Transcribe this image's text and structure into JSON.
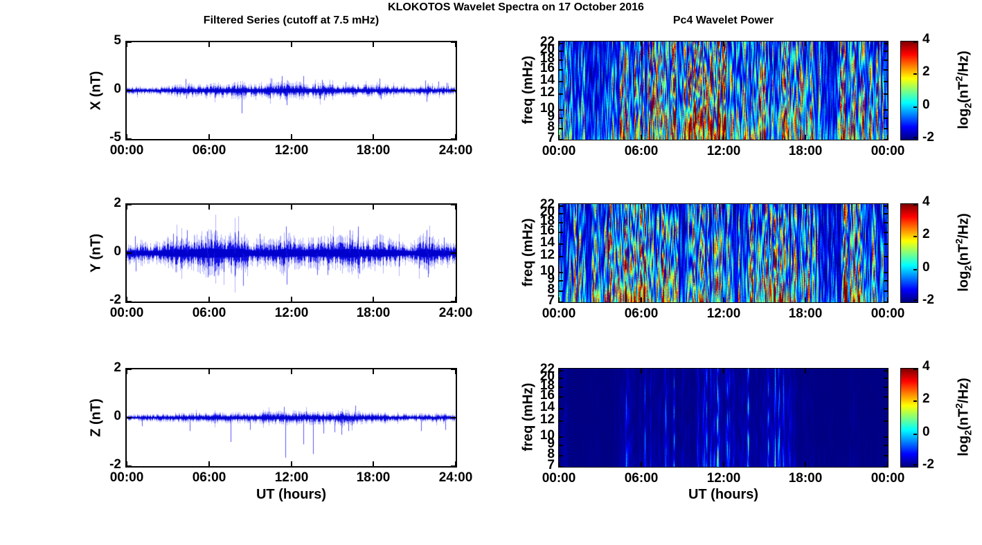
{
  "figure": {
    "title": "KLOKOTOS Wavelet Spectra on 17 October 2016",
    "background": "#ffffff",
    "series_color": "#0000ee",
    "heat_background": "#000080",
    "colormap": "jet"
  },
  "columns": {
    "left": {
      "title": "Filtered Series (cutoff at 7.5 mHz)",
      "xlabel": "UT (hours)"
    },
    "right": {
      "title": "Pc4 Wavelet Power",
      "xlabel": "UT (hours)"
    }
  },
  "colorbar": {
    "label_parts": {
      "pre": "log",
      "sub": "2",
      "mid": "(nT",
      "sup": "2",
      "post": "/Hz)"
    },
    "ticks": [
      -2,
      0,
      2,
      4
    ],
    "range": [
      -2,
      4
    ]
  },
  "chart_data": [
    {
      "id": "x-filtered",
      "type": "line",
      "panel": "left-top",
      "ylabel": "X (nT)",
      "ylim": [
        -5,
        5
      ],
      "yticks": [
        -5,
        0,
        5
      ],
      "xlim_hours": [
        0,
        24
      ],
      "xtick_hours": [
        0,
        6,
        12,
        18,
        24
      ],
      "xtick_labels": [
        "00:00",
        "06:00",
        "12:00",
        "18:00",
        "24:00"
      ],
      "line_color": "#0000ee",
      "seed": 11,
      "envelope_step_hours": 0.5,
      "envelope": [
        0.25,
        0.3,
        0.3,
        0.25,
        0.25,
        0.3,
        0.35,
        0.4,
        0.45,
        0.55,
        0.4,
        0.45,
        0.5,
        0.55,
        0.5,
        0.55,
        0.6,
        0.65,
        0.5,
        0.45,
        0.5,
        0.6,
        0.55,
        0.7,
        0.65,
        0.6,
        0.6,
        0.5,
        0.55,
        0.5,
        0.4,
        0.35,
        0.4,
        0.45,
        0.45,
        0.4,
        0.4,
        0.5,
        0.4,
        0.3,
        0.3,
        0.25,
        0.25,
        0.4,
        0.35,
        0.3,
        0.35,
        0.3,
        0.25
      ],
      "spikes": [
        [
          4.3,
          1.2
        ],
        [
          4.35,
          -0.85
        ],
        [
          8.4,
          -2.35
        ],
        [
          10.6,
          1.25
        ],
        [
          11.35,
          1.5
        ],
        [
          11.7,
          -1.5
        ],
        [
          12.9,
          1.5
        ],
        [
          14.3,
          1.1
        ],
        [
          14.45,
          -1.0
        ],
        [
          16.0,
          0.9
        ],
        [
          18.5,
          1.25
        ],
        [
          18.6,
          -0.9
        ],
        [
          21.8,
          1.05
        ],
        [
          21.9,
          -1.15
        ],
        [
          22.8,
          0.95
        ],
        [
          23.4,
          0.8
        ]
      ]
    },
    {
      "id": "y-filtered",
      "type": "line",
      "panel": "left-middle",
      "ylabel": "Y (nT)",
      "ylim": [
        -2,
        2
      ],
      "yticks": [
        -2,
        0,
        2
      ],
      "xlim_hours": [
        0,
        24
      ],
      "xtick_hours": [
        0,
        6,
        12,
        18,
        24
      ],
      "xtick_labels": [
        "00:00",
        "06:00",
        "12:00",
        "18:00",
        "24:00"
      ],
      "line_color": "#0000ee",
      "seed": 12,
      "envelope_step_hours": 0.5,
      "envelope": [
        0.3,
        0.35,
        0.3,
        0.3,
        0.3,
        0.35,
        0.45,
        0.5,
        0.5,
        0.45,
        0.5,
        0.6,
        0.65,
        0.6,
        0.5,
        0.55,
        0.6,
        0.55,
        0.35,
        0.4,
        0.45,
        0.4,
        0.45,
        0.6,
        0.5,
        0.45,
        0.4,
        0.45,
        0.45,
        0.5,
        0.45,
        0.5,
        0.55,
        0.6,
        0.5,
        0.4,
        0.45,
        0.5,
        0.45,
        0.4,
        0.35,
        0.3,
        0.25,
        0.5,
        0.55,
        0.4,
        0.35,
        0.3,
        0.3
      ],
      "spikes": [
        [
          0.6,
          0.7
        ],
        [
          0.65,
          -0.75
        ],
        [
          3.4,
          0.8
        ],
        [
          4.4,
          0.95
        ],
        [
          5.85,
          0.9
        ],
        [
          5.9,
          -1.0
        ],
        [
          6.4,
          -0.95
        ],
        [
          7.9,
          0.85
        ],
        [
          8.5,
          -1.35
        ],
        [
          9.7,
          0.8
        ],
        [
          11.65,
          1.1
        ],
        [
          11.7,
          -1.3
        ],
        [
          13.9,
          -0.9
        ],
        [
          14.7,
          -0.9
        ],
        [
          16.3,
          0.95
        ],
        [
          16.9,
          1.1
        ],
        [
          17.0,
          -0.85
        ],
        [
          18.3,
          0.7
        ],
        [
          21.9,
          0.95
        ],
        [
          22.0,
          -1.0
        ],
        [
          23.2,
          0.65
        ]
      ]
    },
    {
      "id": "z-filtered",
      "type": "line",
      "panel": "left-bottom",
      "ylabel": "Z (nT)",
      "ylim": [
        -2,
        2
      ],
      "yticks": [
        -2,
        0,
        2
      ],
      "xlim_hours": [
        0,
        24
      ],
      "xtick_hours": [
        0,
        6,
        12,
        18,
        24
      ],
      "xtick_labels": [
        "00:00",
        "06:00",
        "12:00",
        "18:00",
        "24:00"
      ],
      "line_color": "#0000ee",
      "seed": 13,
      "envelope_step_hours": 0.5,
      "envelope": [
        0.1,
        0.1,
        0.1,
        0.1,
        0.1,
        0.12,
        0.12,
        0.12,
        0.13,
        0.14,
        0.13,
        0.13,
        0.14,
        0.15,
        0.14,
        0.15,
        0.16,
        0.15,
        0.15,
        0.16,
        0.17,
        0.18,
        0.18,
        0.2,
        0.2,
        0.2,
        0.18,
        0.2,
        0.18,
        0.17,
        0.18,
        0.2,
        0.22,
        0.2,
        0.18,
        0.16,
        0.15,
        0.14,
        0.13,
        0.12,
        0.12,
        0.11,
        0.11,
        0.13,
        0.12,
        0.11,
        0.12,
        0.11,
        0.1
      ],
      "spikes": [
        [
          1.1,
          -0.35
        ],
        [
          4.6,
          -0.55
        ],
        [
          7.6,
          -1.0
        ],
        [
          9.0,
          -0.5
        ],
        [
          11.5,
          0.45
        ],
        [
          11.6,
          -1.65
        ],
        [
          12.9,
          -1.1
        ],
        [
          13.6,
          -1.5
        ],
        [
          14.4,
          -0.65
        ],
        [
          15.2,
          -0.6
        ],
        [
          15.7,
          -0.7
        ],
        [
          16.2,
          -0.55
        ],
        [
          16.7,
          0.5
        ],
        [
          21.5,
          -0.55
        ],
        [
          23.3,
          -0.5
        ]
      ]
    },
    {
      "id": "x-wavelet-power",
      "type": "heatmap",
      "panel": "right-top",
      "ylabel": "freq (mHz)",
      "yscale": "log",
      "ylim_mhz": [
        7,
        22.5
      ],
      "yticks": [
        7,
        8,
        9,
        10,
        12,
        14,
        16,
        18,
        20,
        22
      ],
      "xlim_hours": [
        0,
        24
      ],
      "xtick_hours": [
        0,
        6,
        12,
        18,
        24
      ],
      "xtick_labels": [
        "00:00",
        "06:00",
        "12:00",
        "18:00",
        "00:00"
      ],
      "clim": [
        -2,
        4
      ],
      "colorbar": true,
      "colorbar_ticks": [
        -2,
        0,
        2,
        4
      ],
      "seed": 21,
      "gain": 1,
      "activity_step_hours": 0.5,
      "activity": [
        0.8,
        0.9,
        0.5,
        0.4,
        0.3,
        0.25,
        0.3,
        0.6,
        0.7,
        0.8,
        0.55,
        0.9,
        0.9,
        1.0,
        0.9,
        0.8,
        0.9,
        1.0,
        0.85,
        0.9,
        1.0,
        1.0,
        0.9,
        1.0,
        0.9,
        0.8,
        0.7,
        0.9,
        0.8,
        0.7,
        0.8,
        0.6,
        0.7,
        0.8,
        0.9,
        0.7,
        0.8,
        0.6,
        0.45,
        0.3,
        0.4,
        0.7,
        0.8,
        0.9,
        0.7,
        0.5,
        0.6,
        0.4
      ],
      "hot_streaks": [
        [
          0.5,
          1.0
        ],
        [
          3.9,
          0.95
        ],
        [
          5.0,
          0.9
        ],
        [
          5.9,
          1.0
        ],
        [
          6.5,
          0.95
        ],
        [
          7.3,
          0.9
        ],
        [
          8.2,
          0.95
        ],
        [
          9.9,
          0.9
        ],
        [
          10.8,
          1.0
        ],
        [
          11.3,
          0.95
        ],
        [
          11.9,
          1.0
        ],
        [
          12.6,
          0.9
        ],
        [
          13.4,
          0.9
        ],
        [
          14.6,
          0.9
        ],
        [
          15.6,
          0.85
        ],
        [
          16.6,
          0.9
        ],
        [
          17.6,
          0.9
        ],
        [
          18.4,
          0.85
        ],
        [
          21.3,
          0.9
        ],
        [
          22.2,
          0.85
        ],
        [
          23.2,
          0.8
        ]
      ]
    },
    {
      "id": "y-wavelet-power",
      "type": "heatmap",
      "panel": "right-middle",
      "ylabel": "freq (mHz)",
      "yscale": "log",
      "ylim_mhz": [
        7,
        22.5
      ],
      "yticks": [
        7,
        8,
        9,
        10,
        12,
        14,
        16,
        18,
        20,
        22
      ],
      "xlim_hours": [
        0,
        24
      ],
      "xtick_hours": [
        0,
        6,
        12,
        18,
        24
      ],
      "xtick_labels": [
        "00:00",
        "06:00",
        "12:00",
        "18:00",
        "00:00"
      ],
      "clim": [
        -2,
        4
      ],
      "colorbar": true,
      "colorbar_ticks": [
        -2,
        0,
        2,
        4
      ],
      "seed": 22,
      "gain": 1,
      "activity_step_hours": 0.5,
      "activity": [
        0.7,
        0.8,
        0.6,
        0.5,
        0.55,
        0.5,
        0.6,
        0.8,
        0.9,
        0.8,
        0.7,
        1.0,
        0.9,
        0.8,
        0.7,
        0.9,
        0.8,
        0.6,
        0.4,
        0.5,
        0.6,
        0.7,
        0.8,
        0.6,
        0.5,
        0.6,
        0.4,
        0.5,
        0.7,
        0.8,
        0.6,
        0.9,
        0.8,
        0.6,
        0.5,
        0.7,
        0.6,
        0.5,
        0.3,
        0.2,
        0.2,
        0.3,
        0.9,
        1.0,
        0.6,
        0.35,
        0.5,
        0.4
      ],
      "hot_streaks": [
        [
          0.8,
          0.9
        ],
        [
          1.1,
          0.85
        ],
        [
          3.8,
          0.95
        ],
        [
          4.8,
          0.9
        ],
        [
          5.6,
          1.0
        ],
        [
          6.0,
          0.95
        ],
        [
          7.2,
          0.9
        ],
        [
          8.1,
          1.0
        ],
        [
          8.5,
          0.9
        ],
        [
          10.9,
          0.85
        ],
        [
          11.6,
          0.95
        ],
        [
          12.3,
          0.85
        ],
        [
          14.2,
          0.8
        ],
        [
          15.5,
          0.9
        ],
        [
          16.0,
          1.0
        ],
        [
          16.3,
          0.9
        ],
        [
          18.2,
          0.9
        ],
        [
          18.9,
          0.85
        ],
        [
          21.6,
          0.95
        ],
        [
          22.1,
          0.9
        ],
        [
          23.1,
          0.8
        ]
      ]
    },
    {
      "id": "z-wavelet-power",
      "type": "heatmap",
      "panel": "right-bottom",
      "ylabel": "freq (mHz)",
      "yscale": "log",
      "ylim_mhz": [
        7,
        22.5
      ],
      "yticks": [
        7,
        8,
        9,
        10,
        12,
        14,
        16,
        18,
        20,
        22
      ],
      "xlim_hours": [
        0,
        24
      ],
      "xtick_hours": [
        0,
        6,
        12,
        18,
        24
      ],
      "xtick_labels": [
        "00:00",
        "06:00",
        "12:00",
        "18:00",
        "00:00"
      ],
      "clim": [
        -2,
        4
      ],
      "colorbar": true,
      "colorbar_ticks": [
        -2,
        0,
        2,
        4
      ],
      "seed": 23,
      "gain": 0.5,
      "activity_step_hours": 0.5,
      "activity": [
        0.02,
        0.06,
        0.02,
        0.02,
        0.02,
        0.02,
        0.02,
        0.02,
        0.03,
        0.1,
        0.12,
        0.04,
        0.06,
        0.12,
        0.07,
        0.15,
        0.1,
        0.04,
        0.06,
        0.1,
        0.09,
        0.16,
        0.2,
        0.35,
        0.16,
        0.2,
        0.12,
        0.26,
        0.12,
        0.06,
        0.16,
        0.3,
        0.26,
        0.12,
        0.2,
        0.06,
        0.06,
        0.03,
        0.02,
        0.02,
        0.02,
        0.04,
        0.02,
        0.05,
        0.02,
        0.02,
        0.02,
        0.02
      ],
      "hot_streaks": [
        [
          4.9,
          0.25
        ],
        [
          6.3,
          0.25
        ],
        [
          7.8,
          0.3
        ],
        [
          8.4,
          0.28
        ],
        [
          10.8,
          0.3
        ],
        [
          11.6,
          0.5
        ],
        [
          12.3,
          0.3
        ],
        [
          13.8,
          0.42
        ],
        [
          15.3,
          0.3
        ],
        [
          15.8,
          0.38
        ],
        [
          16.1,
          0.3
        ],
        [
          16.4,
          0.28
        ]
      ]
    }
  ]
}
